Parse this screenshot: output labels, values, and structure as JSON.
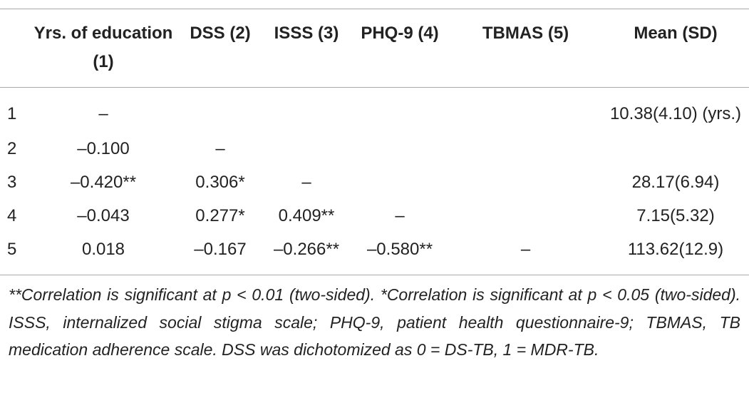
{
  "table": {
    "header": [
      "Yrs. of education (1)",
      "DSS (2)",
      "ISSS (3)",
      "PHQ-9 (4)",
      "TBMAS (5)",
      "Mean (SD)"
    ],
    "rows": [
      {
        "label": "1",
        "cells": [
          "–"
        ],
        "mean": "10.38(4.10) (yrs.)"
      },
      {
        "label": "2",
        "cells": [
          "–0.100",
          "–"
        ]
      },
      {
        "label": "3",
        "cells": [
          "–0.420**",
          "0.306*",
          "–"
        ],
        "mean": "28.17(6.94)"
      },
      {
        "label": "4",
        "cells": [
          "–0.043",
          "0.277*",
          "0.409**",
          "–"
        ],
        "mean": "7.15(5.32)"
      },
      {
        "label": "5",
        "cells": [
          "0.018",
          "–0.167",
          "–0.266**",
          "–0.580**",
          "–"
        ],
        "mean": "113.62(12.9)"
      }
    ]
  },
  "footnote": "**Correlation is significant at p < 0.01 (two-sided). *Correlation is significant at p < 0.05 (two-sided). ISSS, internalized social stigma scale; PHQ-9, patient health questionnaire-9; TBMAS, TB medication adherence scale. DSS was dichotomized as 0 = DS-TB, 1 = MDR-TB."
}
